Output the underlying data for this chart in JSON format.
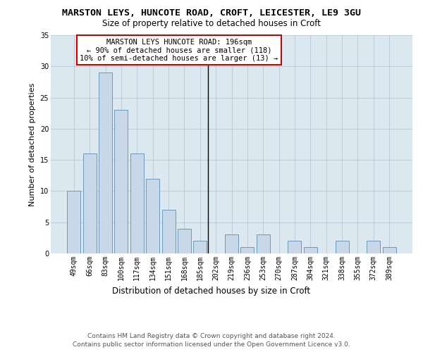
{
  "title": "MARSTON LEYS, HUNCOTE ROAD, CROFT, LEICESTER, LE9 3GU",
  "subtitle": "Size of property relative to detached houses in Croft",
  "xlabel": "Distribution of detached houses by size in Croft",
  "ylabel": "Number of detached properties",
  "categories": [
    "49sqm",
    "66sqm",
    "83sqm",
    "100sqm",
    "117sqm",
    "134sqm",
    "151sqm",
    "168sqm",
    "185sqm",
    "202sqm",
    "219sqm",
    "236sqm",
    "253sqm",
    "270sqm",
    "287sqm",
    "304sqm",
    "321sqm",
    "338sqm",
    "355sqm",
    "372sqm",
    "389sqm"
  ],
  "values": [
    10,
    16,
    29,
    23,
    16,
    12,
    7,
    4,
    2,
    0,
    3,
    1,
    3,
    0,
    2,
    1,
    0,
    2,
    0,
    2,
    1
  ],
  "bar_color": "#c8d8e8",
  "bar_edge_color": "#5a8db5",
  "annotation_text_line1": "MARSTON LEYS HUNCOTE ROAD: 196sqm",
  "annotation_text_line2": "← 90% of detached houses are smaller (118)",
  "annotation_text_line3": "10% of semi-detached houses are larger (13) →",
  "annotation_box_color": "#ffffff",
  "annotation_box_edge": "#cc0000",
  "vline_color": "#000000",
  "ylim": [
    0,
    35
  ],
  "yticks": [
    0,
    5,
    10,
    15,
    20,
    25,
    30,
    35
  ],
  "background_color": "#dce8f0",
  "footer": "Contains HM Land Registry data © Crown copyright and database right 2024.\nContains public sector information licensed under the Open Government Licence v3.0.",
  "title_fontsize": 9.5,
  "subtitle_fontsize": 8.5,
  "xlabel_fontsize": 8.5,
  "ylabel_fontsize": 8,
  "tick_fontsize": 7,
  "annotation_fontsize": 7.5,
  "footer_fontsize": 6.5
}
